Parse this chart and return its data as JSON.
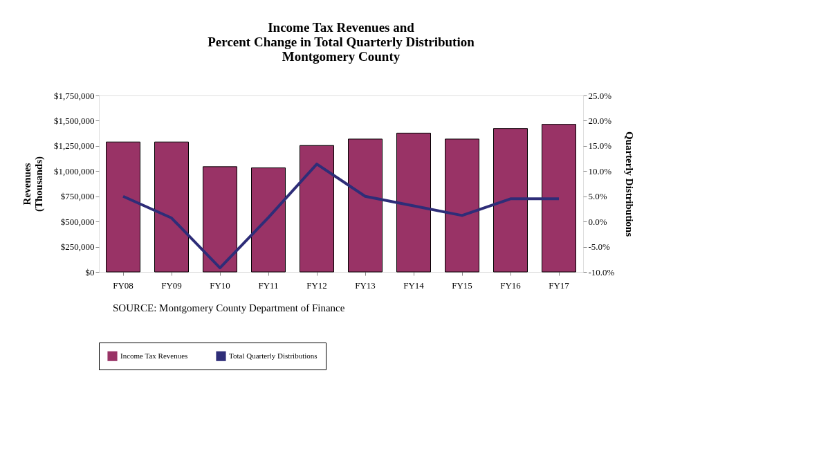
{
  "chart_data": {
    "type": "bar",
    "title": "Income Tax  Revenues and\nPercent Change in Total Quarterly Distribution\nMontgomery County",
    "categories": [
      "FY08",
      "FY09",
      "FY10",
      "FY11",
      "FY12",
      "FY13",
      "FY14",
      "FY15",
      "FY16",
      "FY17"
    ],
    "series": [
      {
        "name": "Income Tax Revenues",
        "color": "#993366",
        "values": [
          1289000,
          1289000,
          1044000,
          1032000,
          1254000,
          1318000,
          1377000,
          1318000,
          1423000,
          1464000
        ]
      },
      {
        "name": "Total Quarterly Distributions",
        "type": "line",
        "axis": "y2",
        "color": "#2e2d78",
        "values": [
          5.0,
          0.7,
          -9.2,
          0.8,
          11.4,
          5.0,
          3.1,
          1.2,
          4.5,
          4.5
        ]
      }
    ],
    "ylabel": "Revenues\n(Thousands)",
    "y2label": "Quarterly Distributions",
    "ylim": [
      0,
      1750000
    ],
    "yticks": [
      {
        "value": 0,
        "label": "$0"
      },
      {
        "value": 250000,
        "label": "$250,000"
      },
      {
        "value": 500000,
        "label": "$500,000"
      },
      {
        "value": 750000,
        "label": "$750,000"
      },
      {
        "value": 1000000,
        "label": "$1,000,000"
      },
      {
        "value": 1250000,
        "label": "$1,250,000"
      },
      {
        "value": 1500000,
        "label": "$1,500,000"
      },
      {
        "value": 1750000,
        "label": "$1,750,000"
      }
    ],
    "y2lim": [
      -10,
      25
    ],
    "y2ticks": [
      {
        "value": -10,
        "label": "-10.0%"
      },
      {
        "value": -5,
        "label": "-5.0%"
      },
      {
        "value": 0,
        "label": "0.0%"
      },
      {
        "value": 5,
        "label": "5.0%"
      },
      {
        "value": 10,
        "label": "10.0%"
      },
      {
        "value": 15,
        "label": "15.0%"
      },
      {
        "value": 20,
        "label": "20.0%"
      },
      {
        "value": 25,
        "label": "25.0%"
      }
    ],
    "legend": "bottom",
    "annotations": [
      "SOURCE:   Montgomery County Department of Finance"
    ]
  }
}
